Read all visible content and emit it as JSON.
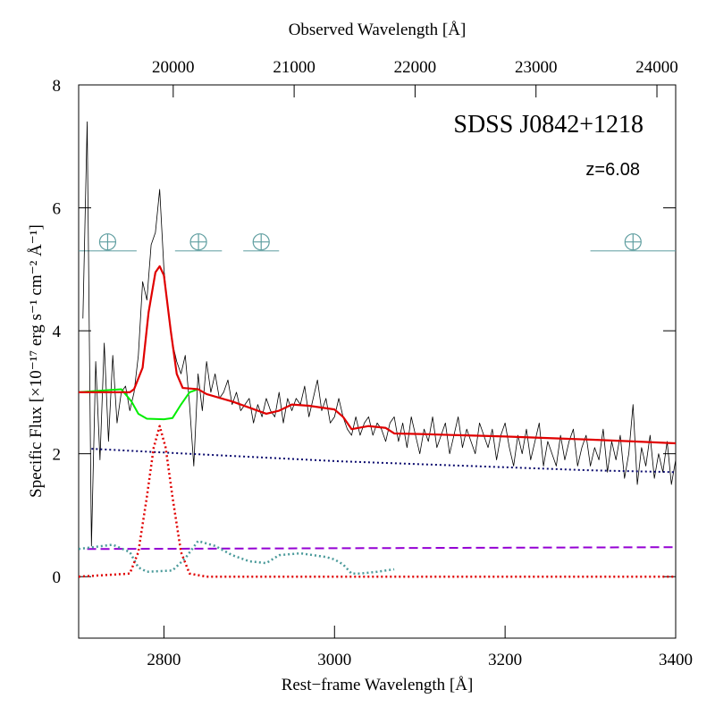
{
  "chart_data": {
    "type": "line",
    "title": "SDSS J0842+1218",
    "annotation": "z=6.08",
    "xlabel": "Rest−frame Wavelength [Å]",
    "x2label": "Observed Wavelength [Å]",
    "ylabel": "Specific Flux [×10⁻¹⁷ erg s⁻¹ cm⁻² Å⁻¹]",
    "xlim": [
      2700,
      3400
    ],
    "xticks": [
      2800,
      3000,
      3200,
      3400
    ],
    "x2lim": [
      19218,
      24155
    ],
    "x2ticks": [
      20000,
      21000,
      22000,
      23000,
      24000
    ],
    "ylim": [
      -1,
      8
    ],
    "yticks": [
      0,
      2,
      4,
      6,
      8
    ],
    "telluric_color": "#5f9ea0",
    "telluric_level": 5.3,
    "telluric_bands": [
      [
        2700,
        2768
      ],
      [
        2813,
        2868
      ],
      [
        2893,
        2935
      ],
      [
        3300,
        3400
      ]
    ],
    "series": [
      {
        "color": "#000000",
        "style": "solid",
        "width": 0.8,
        "x": [
          2705,
          2710,
          2715,
          2720,
          2725,
          2730,
          2735,
          2740,
          2745,
          2750,
          2755,
          2760,
          2765,
          2770,
          2775,
          2780,
          2785,
          2790,
          2795,
          2800,
          2805,
          2810,
          2815,
          2820,
          2825,
          2830,
          2835,
          2840,
          2845,
          2850,
          2855,
          2860,
          2865,
          2870,
          2875,
          2880,
          2885,
          2890,
          2895,
          2900,
          2905,
          2910,
          2915,
          2920,
          2925,
          2930,
          2935,
          2940,
          2945,
          2950,
          2955,
          2960,
          2965,
          2970,
          2975,
          2980,
          2985,
          2990,
          2995,
          3000,
          3005,
          3010,
          3015,
          3020,
          3025,
          3030,
          3035,
          3040,
          3045,
          3050,
          3055,
          3060,
          3065,
          3070,
          3075,
          3080,
          3085,
          3090,
          3095,
          3100,
          3105,
          3110,
          3115,
          3120,
          3125,
          3130,
          3135,
          3140,
          3145,
          3150,
          3155,
          3160,
          3165,
          3170,
          3175,
          3180,
          3185,
          3190,
          3195,
          3200,
          3205,
          3210,
          3215,
          3220,
          3225,
          3230,
          3235,
          3240,
          3245,
          3250,
          3255,
          3260,
          3265,
          3270,
          3275,
          3280,
          3285,
          3290,
          3295,
          3300,
          3305,
          3310,
          3315,
          3320,
          3325,
          3330,
          3335,
          3340,
          3345,
          3350,
          3355,
          3360,
          3365,
          3370,
          3375,
          3380,
          3385,
          3390,
          3395,
          3400
        ],
        "values": [
          4.2,
          7.4,
          0.5,
          3.5,
          1.9,
          3.8,
          2.2,
          3.6,
          2.5,
          3.0,
          3.1,
          2.7,
          3.0,
          3.6,
          4.8,
          4.5,
          5.4,
          5.6,
          6.3,
          5.0,
          4.3,
          3.8,
          3.5,
          3.3,
          3.6,
          2.8,
          1.8,
          3.3,
          2.7,
          3.5,
          3.0,
          3.3,
          2.9,
          3.0,
          3.2,
          2.8,
          3.0,
          2.7,
          2.8,
          2.9,
          2.5,
          2.8,
          2.6,
          2.9,
          2.7,
          2.6,
          3.0,
          2.5,
          2.9,
          2.7,
          2.9,
          2.8,
          3.1,
          2.6,
          2.9,
          3.2,
          2.7,
          2.9,
          2.5,
          2.6,
          2.9,
          2.6,
          2.4,
          2.3,
          2.6,
          2.3,
          2.5,
          2.6,
          2.3,
          2.5,
          2.4,
          2.2,
          2.5,
          2.6,
          2.2,
          2.5,
          2.1,
          2.6,
          2.3,
          2.0,
          2.4,
          2.2,
          2.6,
          2.1,
          2.3,
          2.5,
          2.0,
          2.3,
          2.6,
          2.1,
          2.4,
          2.2,
          2.0,
          2.5,
          2.3,
          2.1,
          2.4,
          1.9,
          2.3,
          2.5,
          2.1,
          1.8,
          2.3,
          2.0,
          2.4,
          1.9,
          2.2,
          2.5,
          1.8,
          2.2,
          2.0,
          1.8,
          2.3,
          1.9,
          2.2,
          2.4,
          1.8,
          2.1,
          2.3,
          1.8,
          2.1,
          1.9,
          2.4,
          1.7,
          2.2,
          1.9,
          2.3,
          1.6,
          2.0,
          2.8,
          1.5,
          2.1,
          1.8,
          2.3,
          1.6,
          2.0,
          1.7,
          2.2,
          1.5,
          1.9
        ]
      },
      {
        "color": "#0a0a6e",
        "style": "dotted",
        "width": 2,
        "x": [
          2715,
          2800,
          2900,
          3000,
          3100,
          3200,
          3300,
          3400
        ],
        "values": [
          2.08,
          2.02,
          1.95,
          1.88,
          1.83,
          1.78,
          1.73,
          1.7
        ]
      },
      {
        "color": "#9400d3",
        "style": "dashed",
        "width": 2,
        "x": [
          2710,
          3400
        ],
        "values": [
          0.45,
          0.48
        ]
      },
      {
        "color": "#4a9a9a",
        "style": "dotted",
        "width": 2.5,
        "x": [
          2700,
          2740,
          2760,
          2770,
          2780,
          2810,
          2825,
          2840,
          2860,
          2880,
          2900,
          2920,
          2935,
          2960,
          2990,
          3000,
          3010,
          3020,
          3030,
          3050,
          3070
        ],
        "values": [
          0.45,
          0.52,
          0.4,
          0.15,
          0.08,
          0.1,
          0.3,
          0.58,
          0.5,
          0.35,
          0.25,
          0.22,
          0.35,
          0.38,
          0.32,
          0.28,
          0.2,
          0.05,
          0.05,
          0.08,
          0.12
        ]
      },
      {
        "color": "#e00000",
        "style": "dotted",
        "width": 2.5,
        "x": [
          2700,
          2760,
          2770,
          2780,
          2788,
          2795,
          2802,
          2810,
          2820,
          2830,
          2850,
          3400
        ],
        "values": [
          0,
          0.05,
          0.4,
          1.3,
          2.1,
          2.45,
          2.1,
          1.3,
          0.4,
          0.05,
          0,
          0
        ]
      },
      {
        "color": "#00ee00",
        "style": "solid",
        "width": 2,
        "x": [
          2700,
          2750,
          2762,
          2770,
          2780,
          2800,
          2810,
          2820,
          2830,
          2840
        ],
        "values": [
          3.0,
          3.05,
          2.85,
          2.65,
          2.57,
          2.56,
          2.58,
          2.8,
          3.0,
          3.05
        ]
      },
      {
        "color": "#e00000",
        "style": "solid",
        "width": 2.2,
        "x": [
          2700,
          2760,
          2765,
          2775,
          2782,
          2790,
          2795,
          2800,
          2808,
          2815,
          2822,
          2840,
          2850,
          2880,
          2900,
          2920,
          2935,
          2950,
          2970,
          3000,
          3010,
          3020,
          3040,
          3060,
          3070,
          3100,
          3200,
          3300,
          3350,
          3400
        ],
        "values": [
          3.0,
          3.0,
          3.05,
          3.4,
          4.3,
          4.95,
          5.05,
          4.9,
          4.0,
          3.3,
          3.07,
          3.05,
          2.97,
          2.85,
          2.75,
          2.65,
          2.7,
          2.8,
          2.78,
          2.72,
          2.6,
          2.4,
          2.45,
          2.42,
          2.33,
          2.32,
          2.28,
          2.23,
          2.2,
          2.17
        ]
      }
    ]
  }
}
